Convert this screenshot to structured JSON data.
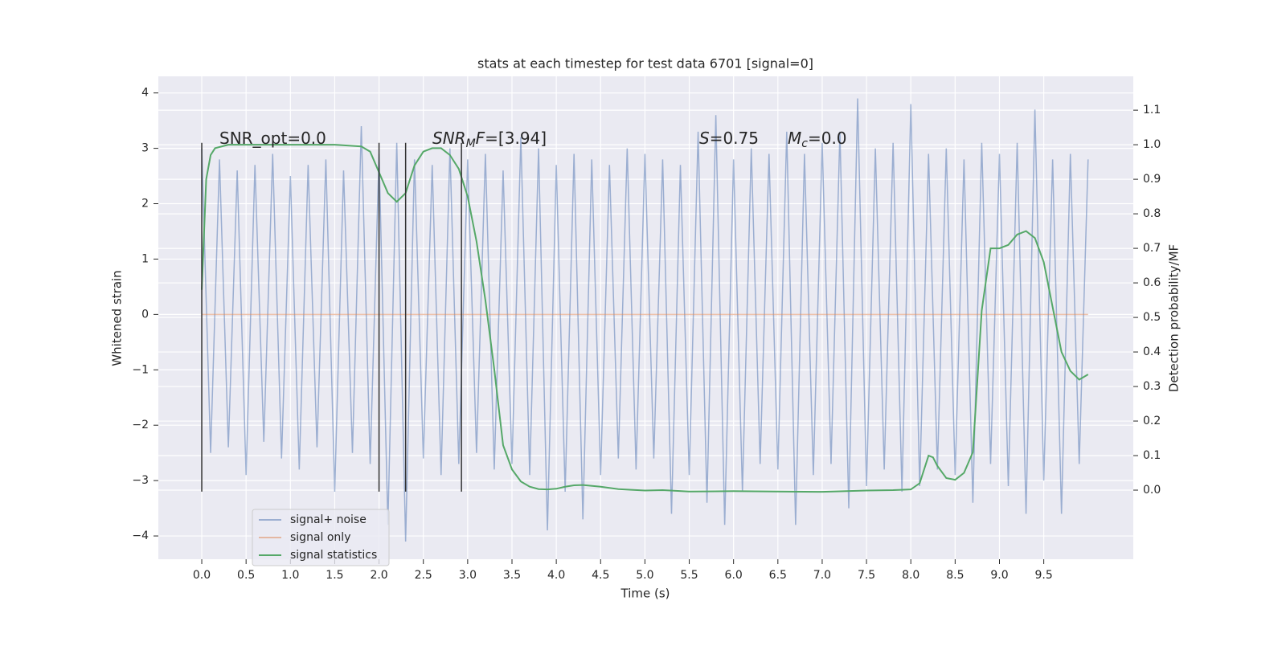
{
  "chart_data": {
    "type": "line",
    "title": "stats at each timestep for test data 6701 [signal=0]",
    "xlabel": "Time (s)",
    "ylabel": "Whitened strain",
    "y2label": "Detection probability/MF",
    "xlim": [
      -0.49,
      10.51
    ],
    "ylim": [
      -4.42,
      4.3
    ],
    "y2lim": [
      -0.2,
      1.198
    ],
    "xticks": [
      {
        "value": 0,
        "label": "0.0"
      },
      0.5,
      {
        "value": 1,
        "label": "1.0"
      },
      1.5,
      {
        "value": 2,
        "label": "2.0"
      },
      2.5,
      {
        "value": 3,
        "label": "3.0"
      },
      3.5,
      {
        "value": 4,
        "label": "4.0"
      },
      4.5,
      {
        "value": 5,
        "label": "5.0"
      },
      5.5,
      {
        "value": 6,
        "label": "6.0"
      },
      6.5,
      {
        "value": 7,
        "label": "7.0"
      },
      7.5,
      {
        "value": 8,
        "label": "8.0"
      },
      8.5,
      {
        "value": 9,
        "label": "9.0"
      },
      9.5
    ],
    "yticks": [
      {
        "value": -4,
        "label": "−4"
      },
      {
        "value": -3,
        "label": "−3"
      },
      {
        "value": -2,
        "label": "−2"
      },
      {
        "value": -1,
        "label": "−1"
      },
      0,
      1,
      2,
      3,
      4
    ],
    "y2ticks": [
      {
        "value": 0,
        "label": "0.0"
      },
      0.1,
      0.2,
      0.3,
      0.4,
      0.5,
      0.6,
      0.7,
      0.8,
      0.9,
      {
        "value": 1,
        "label": "1.0"
      },
      1.1
    ],
    "grid": true,
    "background": "#eaeaf2",
    "legend_loc": "lower left",
    "series": [
      {
        "name": "signal+ noise",
        "color": "#4c72b0",
        "opacity": 0.5,
        "x": [
          0,
          0.1,
          0.2,
          0.3,
          0.4,
          0.5,
          0.6,
          0.7,
          0.8,
          0.9,
          1,
          1.1,
          1.2,
          1.3,
          1.4,
          1.5,
          1.6,
          1.7,
          1.8,
          1.9,
          2,
          2.1,
          2.2,
          2.3,
          2.4,
          2.5,
          2.6,
          2.7,
          2.8,
          2.9,
          3,
          3.1,
          3.2,
          3.3,
          3.4,
          3.5,
          3.6,
          3.7,
          3.8,
          3.9,
          4,
          4.1,
          4.2,
          4.3,
          4.4,
          4.5,
          4.6,
          4.7,
          4.8,
          4.9,
          5,
          5.1,
          5.2,
          5.3,
          5.4,
          5.5,
          5.6,
          5.7,
          5.8,
          5.9,
          6,
          6.1,
          6.2,
          6.3,
          6.4,
          6.5,
          6.6,
          6.7,
          6.8,
          6.9,
          7,
          7.1,
          7.2,
          7.3,
          7.4,
          7.5,
          7.6,
          7.7,
          7.8,
          7.9,
          8,
          8.1,
          8.2,
          8.3,
          8.4,
          8.5,
          8.6,
          8.7,
          8.8,
          8.9,
          9,
          9.1,
          9.2,
          9.3,
          9.4,
          9.5,
          9.6,
          9.7,
          9.8,
          9.9,
          10
        ],
        "values": [
          3.0,
          -2.5,
          2.8,
          -2.4,
          2.6,
          -2.9,
          2.7,
          -2.3,
          2.9,
          -2.6,
          2.5,
          -2.8,
          2.7,
          -2.4,
          2.8,
          -3.2,
          2.6,
          -2.5,
          3.4,
          -2.7,
          2.9,
          -3.8,
          3.1,
          -4.1,
          2.8,
          -2.6,
          2.7,
          -2.9,
          3.0,
          -2.7,
          2.8,
          -2.5,
          2.9,
          -2.8,
          2.6,
          -2.7,
          3.2,
          -2.9,
          3.0,
          -3.9,
          2.7,
          -3.2,
          2.9,
          -3.7,
          2.8,
          -2.9,
          2.7,
          -2.6,
          3.0,
          -2.8,
          2.9,
          -2.6,
          2.8,
          -3.6,
          2.7,
          -2.9,
          3.3,
          -3.4,
          3.6,
          -3.8,
          2.8,
          -3.2,
          3.0,
          -2.7,
          2.9,
          -2.8,
          3.3,
          -3.8,
          2.9,
          -2.9,
          3.1,
          -2.7,
          3.3,
          -3.5,
          3.9,
          -3.1,
          3.0,
          -2.8,
          3.1,
          -3.2,
          3.8,
          -3.1,
          2.9,
          -2.8,
          3.0,
          -2.9,
          2.8,
          -3.4,
          3.1,
          -2.7,
          2.9,
          -3.1,
          3.1,
          -3.6,
          3.7,
          -3.0,
          2.8,
          -3.6,
          2.9,
          -2.7,
          2.8
        ]
      },
      {
        "name": "signal only",
        "color": "#dd8452",
        "opacity": 0.5,
        "x": [
          0,
          10
        ],
        "values": [
          0,
          0
        ]
      },
      {
        "name": "signal statistics",
        "color": "#55a868",
        "opacity": 1,
        "axis": "y2",
        "x": [
          0,
          0.05,
          0.1,
          0.15,
          0.3,
          0.5,
          1,
          1.5,
          1.8,
          1.9,
          2,
          2.1,
          2.2,
          2.3,
          2.4,
          2.5,
          2.6,
          2.7,
          2.8,
          2.9,
          3,
          3.1,
          3.2,
          3.3,
          3.4,
          3.5,
          3.6,
          3.7,
          3.8,
          3.9,
          4,
          4.1,
          4.2,
          4.3,
          4.5,
          4.7,
          5,
          5.2,
          5.5,
          6,
          6.5,
          7,
          7.5,
          7.8,
          8,
          8.1,
          8.2,
          8.25,
          8.3,
          8.4,
          8.5,
          8.6,
          8.7,
          8.8,
          8.9,
          9,
          9.1,
          9.2,
          9.3,
          9.4,
          9.5,
          9.6,
          9.7,
          9.8,
          9.9,
          10
        ],
        "values": [
          0.58,
          0.9,
          0.97,
          0.99,
          1.0,
          1.0,
          1.0,
          1.0,
          0.995,
          0.98,
          0.92,
          0.86,
          0.835,
          0.86,
          0.94,
          0.98,
          0.99,
          0.99,
          0.97,
          0.93,
          0.85,
          0.72,
          0.55,
          0.35,
          0.13,
          0.06,
          0.025,
          0.01,
          0.003,
          0.002,
          0.004,
          0.01,
          0.014,
          0.015,
          0.01,
          0.003,
          -0.001,
          0.0,
          -0.004,
          -0.003,
          -0.004,
          -0.005,
          -0.001,
          0.0,
          0.002,
          0.02,
          0.1,
          0.095,
          0.07,
          0.035,
          0.03,
          0.05,
          0.11,
          0.52,
          0.7,
          0.7,
          0.71,
          0.74,
          0.75,
          0.73,
          0.66,
          0.53,
          0.4,
          0.345,
          0.32,
          0.335
        ]
      }
    ],
    "vlines": {
      "x": [
        0,
        2.0,
        2.3,
        2.93
      ],
      "ymin": -3.2,
      "ymax": 3.1,
      "color": "#333333"
    },
    "annotations": [
      [
        {
          "text": "SNR_opt=0.0"
        }
      ],
      [
        {
          "text": "SNR",
          "italic": true
        },
        {
          "text": "M",
          "italic": true,
          "sub": true
        },
        {
          "text": "F",
          "italic": true
        },
        {
          "text": "=[3.94]"
        }
      ],
      [
        {
          "text": "S",
          "italic": true
        },
        {
          "text": "=0.75"
        }
      ],
      [
        {
          "text": "M",
          "italic": true
        },
        {
          "text": "c",
          "italic": true,
          "sub": true
        },
        {
          "text": "=0.0"
        }
      ]
    ]
  }
}
